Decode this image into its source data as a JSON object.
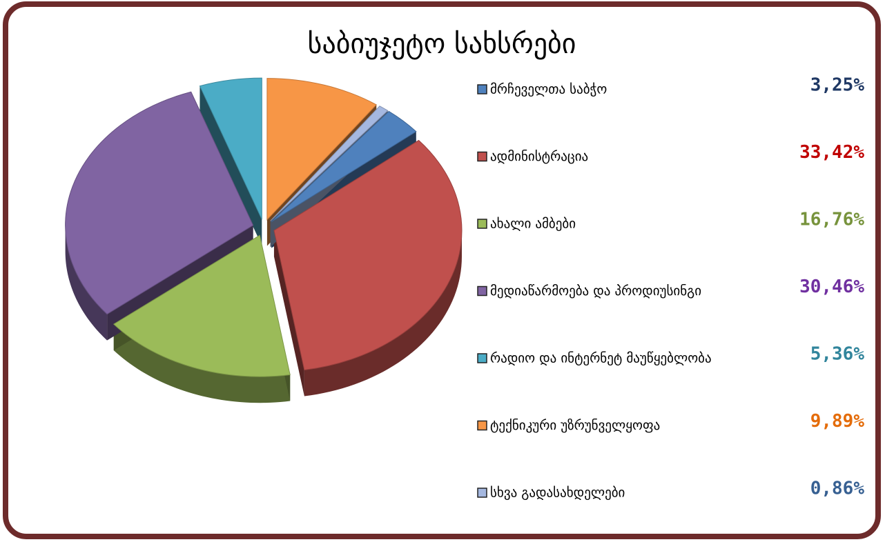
{
  "chart_data": {
    "type": "pie",
    "title": "საბიუჯეტო სახსრები",
    "categories": [
      "მრჩეველთა საბჭო",
      "ადმინისტრაცია",
      "ახალი ამბები",
      "მედიაწარმოება და პროდიუსინგი",
      "რადიო და ინტერნეტ მაუწყებლობა",
      "ტექნიკური უზრუნველყოფა",
      "სხვა გადასახდელები"
    ],
    "values": [
      3.25,
      33.42,
      16.76,
      30.46,
      5.36,
      9.89,
      0.86
    ],
    "value_labels": [
      "3,25%",
      "33,42%",
      "16,76%",
      "30,46%",
      "5,36%",
      "9,89%",
      "0,86%"
    ],
    "colors": [
      "#4f81bd",
      "#c0504d",
      "#9bbb59",
      "#8064a2",
      "#4bacc6",
      "#f79646",
      "#a5b8e0"
    ],
    "value_label_colors": [
      "#1f3864",
      "#c00000",
      "#77933c",
      "#7030a0",
      "#31859c",
      "#e46c0a",
      "#376092"
    ],
    "legend": "right"
  }
}
